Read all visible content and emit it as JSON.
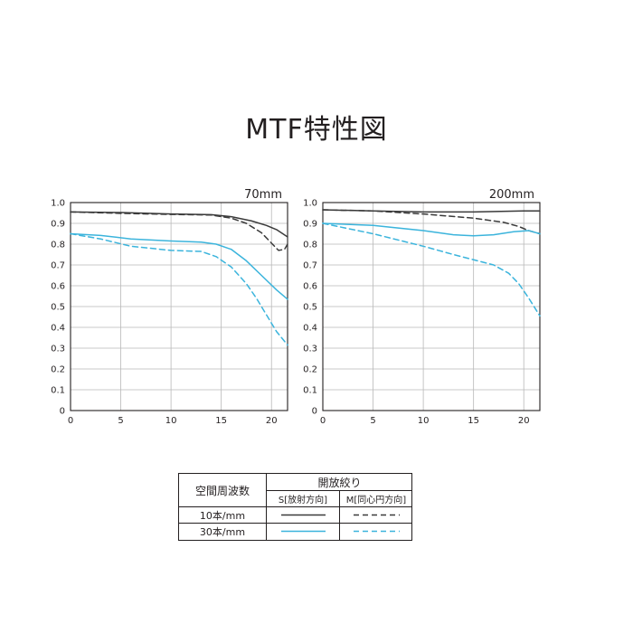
{
  "title": "MTF特性図",
  "colors": {
    "s10": "#3a3a3a",
    "s30": "#3bb4dc",
    "axis": "#231f20",
    "grid": "#b8b8b8"
  },
  "chart_data": [
    {
      "type": "line",
      "label": "70mm",
      "xlim": [
        0,
        21.6
      ],
      "ylim": [
        0,
        1.0
      ],
      "xticks": [
        0,
        5,
        10,
        15,
        20
      ],
      "yticks": [
        0,
        0.1,
        0.2,
        0.3,
        0.4,
        0.5,
        0.6,
        0.7,
        0.8,
        0.9,
        1.0
      ],
      "grid": true,
      "series": [
        {
          "name": "10本/mm S",
          "style": "solid",
          "color": "#3a3a3a",
          "x": [
            0,
            5,
            10,
            14,
            16,
            18,
            19.5,
            20.5,
            21.6
          ],
          "y": [
            0.955,
            0.952,
            0.945,
            0.942,
            0.932,
            0.912,
            0.89,
            0.87,
            0.835
          ]
        },
        {
          "name": "10本/mm M",
          "style": "dashed",
          "color": "#3a3a3a",
          "x": [
            0,
            5,
            10,
            14,
            16,
            17.5,
            19,
            20,
            20.7,
            21.3,
            21.6
          ],
          "y": [
            0.955,
            0.948,
            0.943,
            0.94,
            0.925,
            0.9,
            0.855,
            0.805,
            0.77,
            0.775,
            0.8
          ]
        },
        {
          "name": "30本/mm S",
          "style": "solid",
          "color": "#3bb4dc",
          "x": [
            0,
            3,
            6,
            10,
            13,
            14.5,
            16,
            17.5,
            19,
            20.5,
            21.6
          ],
          "y": [
            0.85,
            0.842,
            0.825,
            0.815,
            0.81,
            0.8,
            0.775,
            0.72,
            0.65,
            0.58,
            0.535
          ]
        },
        {
          "name": "30本/mm M",
          "style": "dashed",
          "color": "#3bb4dc",
          "x": [
            0,
            3,
            6,
            10,
            13,
            14.5,
            16,
            17.5,
            18.5,
            19.5,
            20.5,
            21.6
          ],
          "y": [
            0.85,
            0.825,
            0.79,
            0.77,
            0.765,
            0.74,
            0.69,
            0.61,
            0.54,
            0.46,
            0.38,
            0.315
          ]
        }
      ]
    },
    {
      "type": "line",
      "label": "200mm",
      "xlim": [
        0,
        21.6
      ],
      "ylim": [
        0,
        1.0
      ],
      "xticks": [
        0,
        5,
        10,
        15,
        20
      ],
      "yticks": [
        0,
        0.1,
        0.2,
        0.3,
        0.4,
        0.5,
        0.6,
        0.7,
        0.8,
        0.9,
        1.0
      ],
      "grid": true,
      "series": [
        {
          "name": "10本/mm S",
          "style": "solid",
          "color": "#3a3a3a",
          "x": [
            0,
            5,
            10,
            15,
            20,
            21.6
          ],
          "y": [
            0.965,
            0.96,
            0.955,
            0.955,
            0.96,
            0.96
          ]
        },
        {
          "name": "10本/mm M",
          "style": "dashed",
          "color": "#3a3a3a",
          "x": [
            0,
            5,
            10,
            15,
            18,
            19.5,
            20.5,
            21.6
          ],
          "y": [
            0.965,
            0.96,
            0.945,
            0.925,
            0.905,
            0.885,
            0.865,
            0.85
          ]
        },
        {
          "name": "30本/mm S",
          "style": "solid",
          "color": "#3bb4dc",
          "x": [
            0,
            5,
            10,
            13,
            15,
            17,
            19,
            20.5,
            21.6
          ],
          "y": [
            0.9,
            0.89,
            0.865,
            0.845,
            0.84,
            0.845,
            0.86,
            0.865,
            0.85
          ]
        },
        {
          "name": "30本/mm M",
          "style": "dashed",
          "color": "#3bb4dc",
          "x": [
            0,
            5,
            10,
            13,
            15,
            17,
            18.5,
            19.5,
            20.5,
            21.6
          ],
          "y": [
            0.9,
            0.85,
            0.79,
            0.75,
            0.725,
            0.7,
            0.66,
            0.61,
            0.54,
            0.455
          ]
        }
      ]
    }
  ],
  "legend": {
    "row_header": "空間周波数",
    "col_header": "開放絞り",
    "col_s": "S[放射方向]",
    "col_m": "M[同心円方向]",
    "row1": "10本/mm",
    "row2": "30本/mm"
  }
}
